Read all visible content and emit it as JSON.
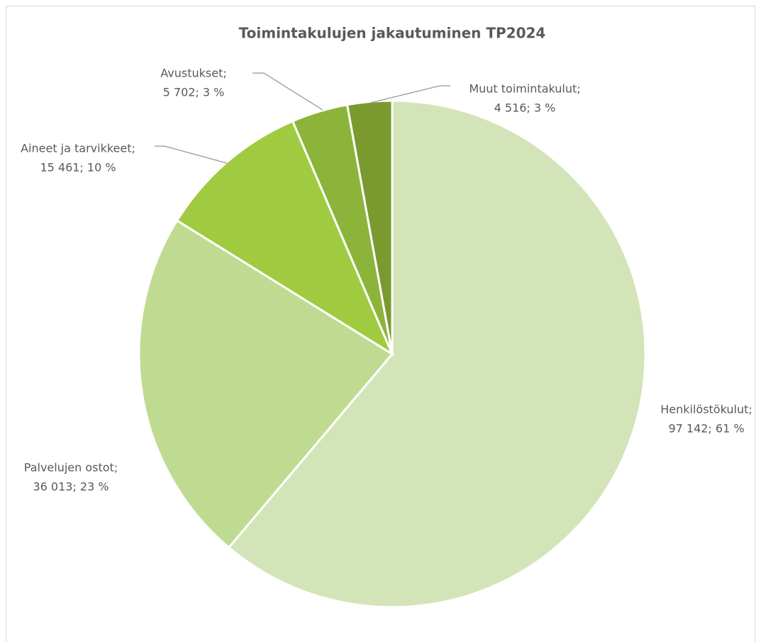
{
  "chart_data": {
    "type": "pie",
    "title": "Toimintakulujen jakautuminen TP2024",
    "categories": [
      "Henkilöstökulut;",
      "Palvelujen ostot;",
      "Aineet ja tarvikkeet;",
      "Avustukset;",
      "Muut toimintakulut;"
    ],
    "values": [
      97142,
      36013,
      15461,
      5702,
      4516
    ],
    "value_labels": [
      "97 142; 61 %",
      "36 013; 23 %",
      "15 461; 10 %",
      "5 702; 3 %",
      "4 516; 3 %"
    ],
    "colors": [
      "#d4e4b9",
      "#bfdb91",
      "#a0cb40",
      "#8cb43a",
      "#7a9a30"
    ]
  }
}
